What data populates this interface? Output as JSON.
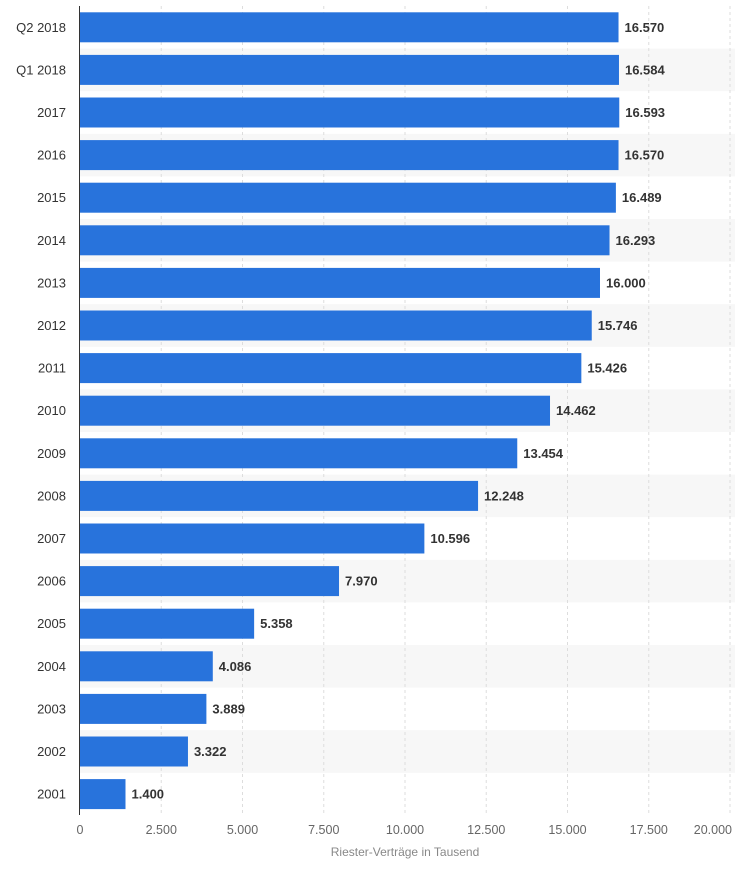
{
  "chart_data": {
    "type": "bar",
    "orientation": "horizontal",
    "categories": [
      "Q2 2018",
      "Q1 2018",
      "2017",
      "2016",
      "2015",
      "2014",
      "2013",
      "2012",
      "2011",
      "2010",
      "2009",
      "2008",
      "2007",
      "2006",
      "2005",
      "2004",
      "2003",
      "2002",
      "2001"
    ],
    "values": [
      16570,
      16584,
      16593,
      16570,
      16489,
      16293,
      16000,
      15746,
      15426,
      14462,
      13454,
      12248,
      10596,
      7970,
      5358,
      4086,
      3889,
      3322,
      1400
    ],
    "value_labels": [
      "16.570",
      "16.584",
      "16.593",
      "16.570",
      "16.489",
      "16.293",
      "16.000",
      "15.746",
      "15.426",
      "14.462",
      "13.454",
      "12.248",
      "10.596",
      "7.970",
      "5.358",
      "4.086",
      "3.889",
      "3.322",
      "1.400"
    ],
    "xlabel": "Riester-Verträge in Tausend",
    "xlim": [
      0,
      20000
    ],
    "ticks": [
      0,
      2500,
      5000,
      7500,
      10000,
      12500,
      15000,
      17500,
      20000
    ],
    "tick_labels": [
      "0",
      "2.500",
      "5.000",
      "7.500",
      "10.000",
      "12.500",
      "15.000",
      "17.500",
      "20.000"
    ],
    "grid": "vertical dashed",
    "bar_color": "#2873dc",
    "band_color": "#f7f7f7"
  }
}
